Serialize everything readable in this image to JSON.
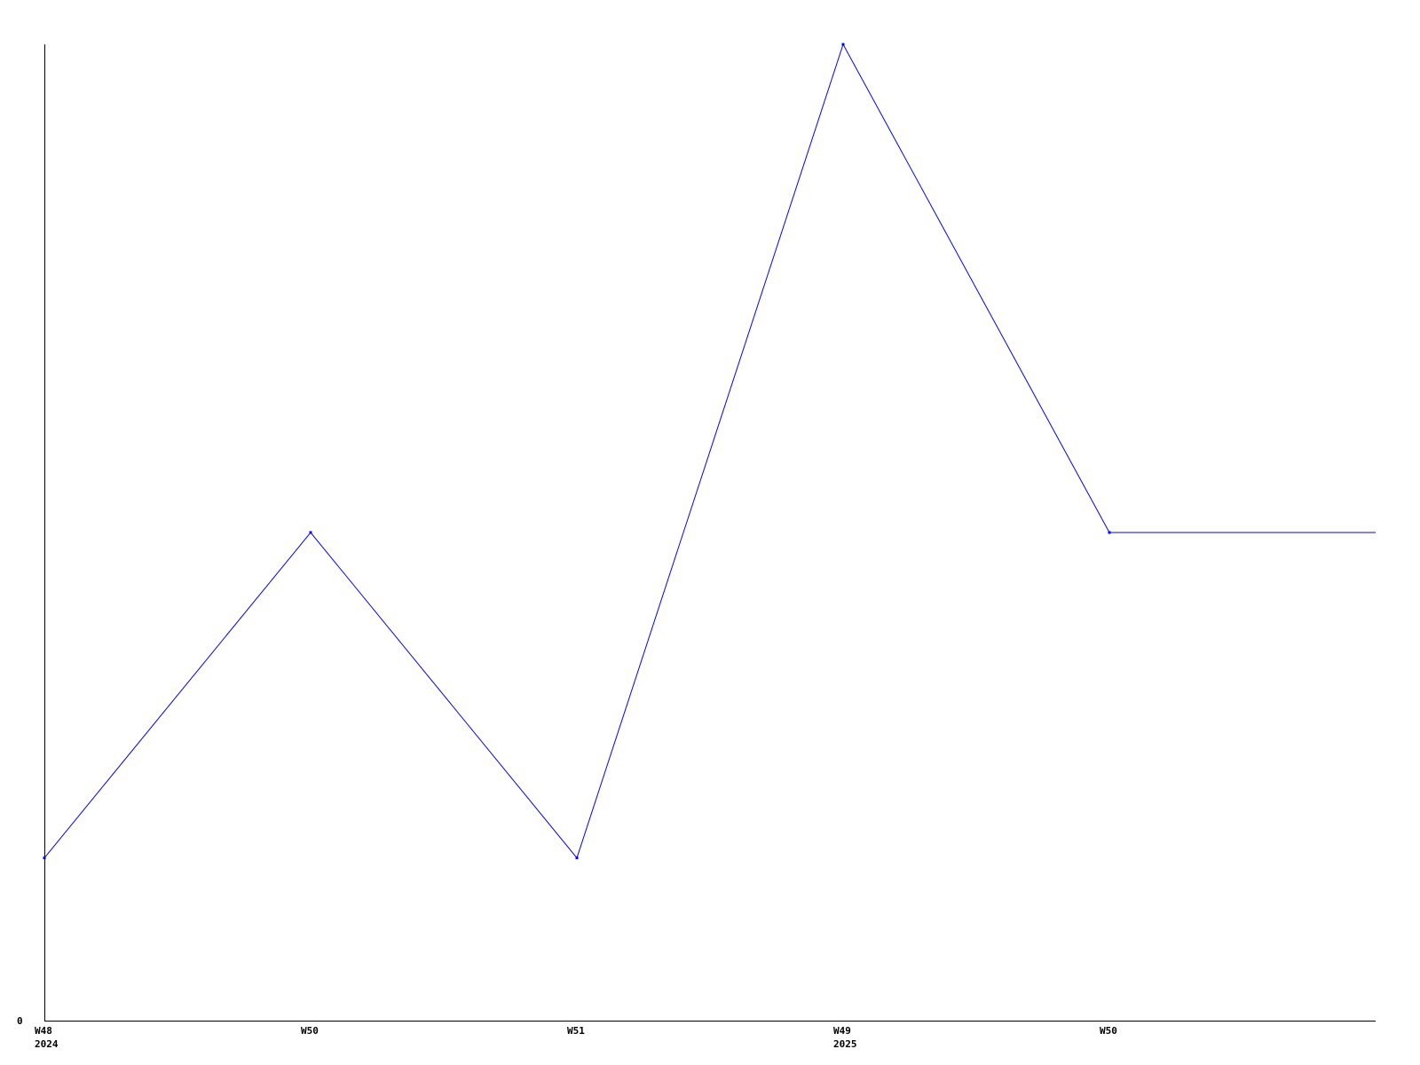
{
  "chart_data": {
    "type": "line",
    "title": "",
    "xlabel": "",
    "ylabel": "",
    "categories": [
      {
        "week": "W48",
        "year": "2024"
      },
      {
        "week": "W50",
        "year": ""
      },
      {
        "week": "W51",
        "year": ""
      },
      {
        "week": "W49",
        "year": "2025"
      },
      {
        "week": "W50",
        "year": ""
      }
    ],
    "values": [
      1,
      3,
      1,
      6,
      3
    ],
    "extends_flat_to_right_edge": true,
    "y_tick_labels": [
      "0"
    ],
    "ylim": [
      0,
      6
    ],
    "grid": false,
    "line_color": "#0000ff",
    "axis_color": "#000000"
  }
}
